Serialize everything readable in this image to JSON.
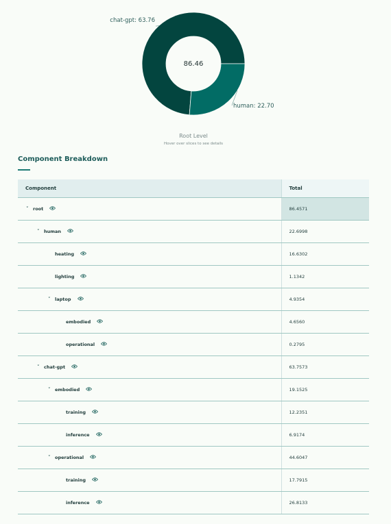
{
  "chart_data": {
    "type": "pie",
    "style": "donut",
    "center_value": "86.46",
    "slices": [
      {
        "label": "chat-gpt",
        "value": 63.76,
        "display": "chat-gpt: 63.76",
        "color": "#03453f"
      },
      {
        "label": "human",
        "value": 22.7,
        "display": "human: 22.70",
        "color": "#026c65"
      }
    ],
    "title": "Root Level",
    "subtitle": "Hover over slices to see details"
  },
  "section": {
    "title": "Component Breakdown"
  },
  "table": {
    "headers": {
      "component": "Component",
      "total": "Total"
    },
    "rows": [
      {
        "name": "root",
        "total": "86.4571",
        "depth": 0,
        "expandable": true
      },
      {
        "name": "human",
        "total": "22.6998",
        "depth": 1,
        "expandable": true
      },
      {
        "name": "heating",
        "total": "16.6302",
        "depth": 2,
        "expandable": false
      },
      {
        "name": "lighting",
        "total": "1.1342",
        "depth": 2,
        "expandable": false
      },
      {
        "name": "laptop",
        "total": "4.9354",
        "depth": 2,
        "expandable": true
      },
      {
        "name": "embodied",
        "total": "4.6560",
        "depth": 3,
        "expandable": false
      },
      {
        "name": "operational",
        "total": "0.2795",
        "depth": 3,
        "expandable": false
      },
      {
        "name": "chat-gpt",
        "total": "63.7573",
        "depth": 1,
        "expandable": true
      },
      {
        "name": "embodied",
        "total": "19.1525",
        "depth": 2,
        "expandable": true
      },
      {
        "name": "training",
        "total": "12.2351",
        "depth": 3,
        "expandable": false
      },
      {
        "name": "inference",
        "total": "6.9174",
        "depth": 3,
        "expandable": false
      },
      {
        "name": "operational",
        "total": "44.6047",
        "depth": 2,
        "expandable": true
      },
      {
        "name": "training",
        "total": "17.7915",
        "depth": 3,
        "expandable": false
      },
      {
        "name": "inference",
        "total": "26.8133",
        "depth": 3,
        "expandable": false
      }
    ],
    "icons": {
      "expand": "chevron-down-icon",
      "view": "eye-icon"
    }
  },
  "colors": {
    "accent": "#1d7a74",
    "donut_dark": "#03453f",
    "donut_light": "#026c65"
  }
}
